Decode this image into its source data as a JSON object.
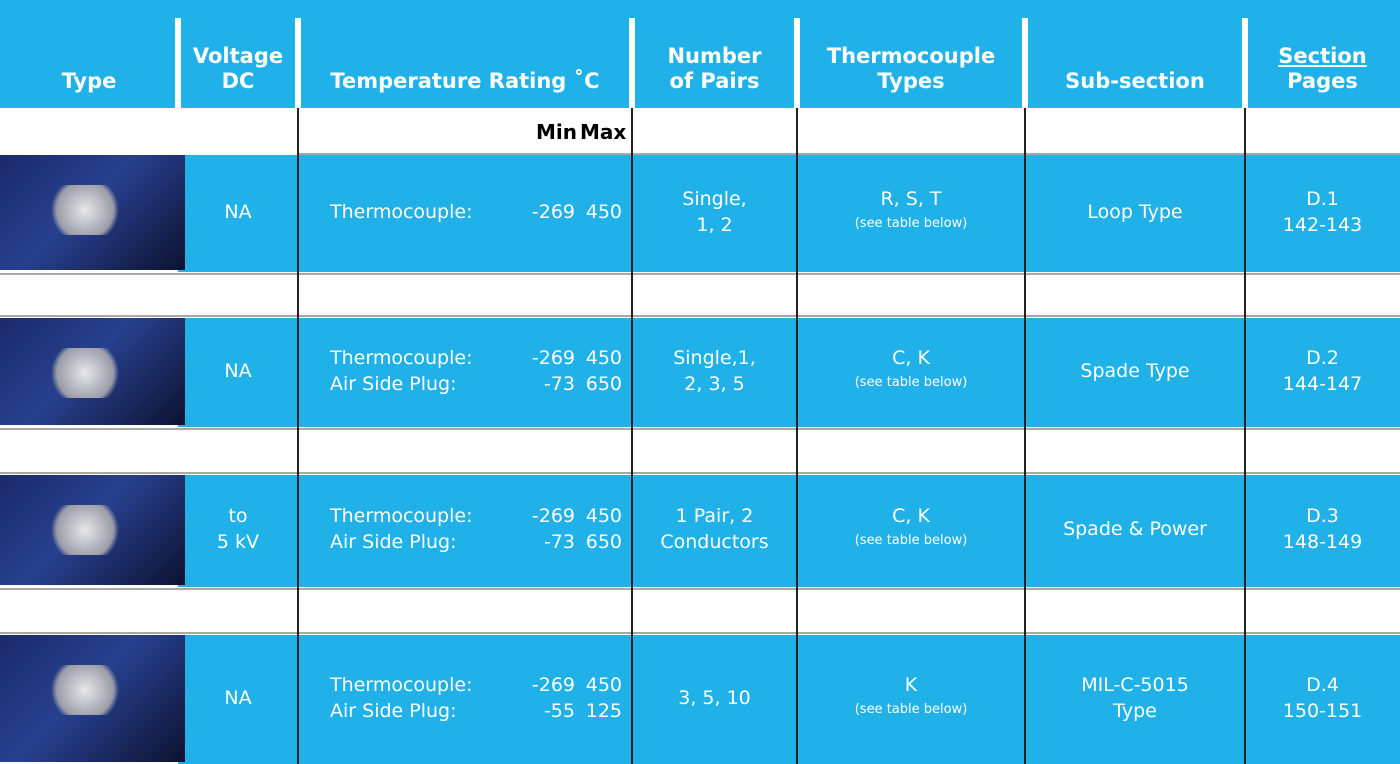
{
  "header": {
    "columns": [
      {
        "lines": [
          "Type"
        ]
      },
      {
        "lines": [
          "Voltage",
          "DC"
        ]
      },
      {
        "lines": [
          "Temperature Rating ˚C"
        ]
      },
      {
        "lines": [
          "Number",
          "of Pairs"
        ]
      },
      {
        "lines": [
          "Thermocouple",
          "Types"
        ]
      },
      {
        "lines": [
          "Sub-section"
        ]
      },
      {
        "lines": [
          "Section",
          "Pages"
        ]
      }
    ]
  },
  "subheader": {
    "min": "Min",
    "max": "Max"
  },
  "rows": [
    {
      "voltage": [
        "NA"
      ],
      "ratings": [
        {
          "label": "Thermocouple:",
          "min": -269,
          "max": 450
        }
      ],
      "pairs": [
        "Single,",
        "1, 2"
      ],
      "tc_types": "R, S, T",
      "tc_note": "(see table below)",
      "subsection": [
        "Loop Type"
      ],
      "section": "D.1",
      "pages": "142-143"
    },
    {
      "voltage": [
        "NA"
      ],
      "ratings": [
        {
          "label": "Thermocouple:",
          "min": -269,
          "max": 450
        },
        {
          "label": "Air Side Plug:",
          "min": -73,
          "max": 650
        }
      ],
      "pairs": [
        "Single,1,",
        "2, 3, 5"
      ],
      "tc_types": "C, K",
      "tc_note": "(see table below)",
      "subsection": [
        "Spade Type"
      ],
      "section": "D.2",
      "pages": "144-147"
    },
    {
      "voltage": [
        "to",
        "5 kV"
      ],
      "ratings": [
        {
          "label": "Thermocouple:",
          "min": -269,
          "max": 450
        },
        {
          "label": "Air Side Plug:",
          "min": -73,
          "max": 650
        }
      ],
      "pairs": [
        "1 Pair, 2",
        "Conductors"
      ],
      "tc_types": "C, K",
      "tc_note": "(see table below)",
      "subsection": [
        "Spade & Power"
      ],
      "section": "D.3",
      "pages": "148-149"
    },
    {
      "voltage": [
        "NA"
      ],
      "ratings": [
        {
          "label": "Thermocouple:",
          "min": -269,
          "max": 450
        },
        {
          "label": "Air Side Plug:",
          "min": -55,
          "max": 125
        }
      ],
      "pairs": [
        "3, 5, 10"
      ],
      "tc_types": "K",
      "tc_note": "(see table below)",
      "subsection": [
        "MIL-C-5015",
        "Type"
      ],
      "section": "D.4",
      "pages": "150-151"
    }
  ]
}
